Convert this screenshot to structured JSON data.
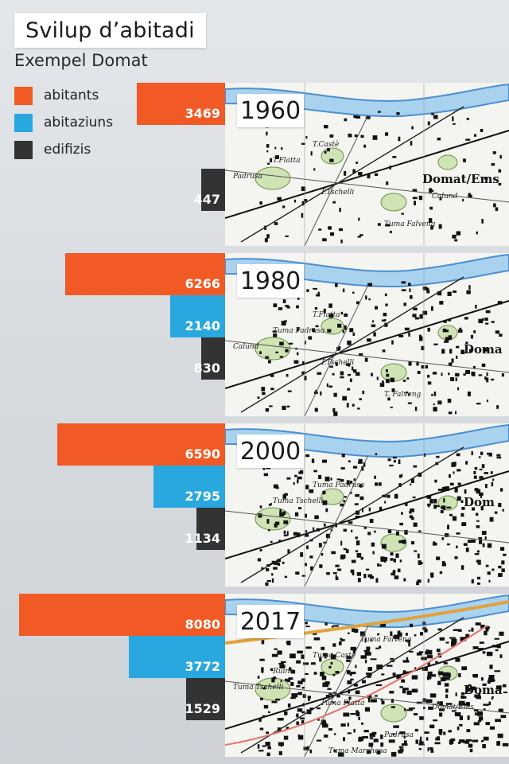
{
  "title": "Svilup d’abitadi",
  "subtitle": "Exempel Domat",
  "colors": {
    "abitants": "#f15a24",
    "abitaziuns": "#29a8e0",
    "edifizis": "#333333"
  },
  "legend": [
    {
      "key": "abitants",
      "label": "abitants"
    },
    {
      "key": "abitaziuns",
      "label": "abitaziuns"
    },
    {
      "key": "edifizis",
      "label": "edifizis"
    }
  ],
  "chart_data": {
    "type": "bar",
    "orientation": "horizontal",
    "title": "Svilup d’abitadi",
    "subtitle": "Exempel Domat",
    "categories": [
      "1960",
      "1980",
      "2000",
      "2017"
    ],
    "series": [
      {
        "name": "abitants",
        "values": [
          3469,
          6266,
          6590,
          8080
        ]
      },
      {
        "name": "abitaziuns",
        "values": [
          null,
          2140,
          2795,
          3772
        ]
      },
      {
        "name": "edifizis",
        "values": [
          447,
          830,
          1134,
          1529
        ]
      }
    ]
  },
  "maps": {
    "1960": {
      "place": "Domat/Ems",
      "labels": [
        "T.Castè",
        "T.Flatta",
        "T.Tschelli",
        "Tuma Falveng",
        "Padrusa",
        "Calund"
      ]
    },
    "1980": {
      "place": "Doma",
      "labels": [
        "T.Flatta",
        "Tuma Padrusa",
        "T.Tschelli",
        "T. Falveng",
        "Calund"
      ]
    },
    "2000": {
      "place": "Dom",
      "labels": [
        "Tuma Padrusa",
        "Tuma Tschelli"
      ]
    },
    "2017": {
      "place": "Doma",
      "labels": [
        "Tuma Castè",
        "Ruine",
        "Tuma Platta",
        "Padrusa",
        "Tuma Tschelli",
        "Domat/Ems",
        "Tuma Falveng",
        "Tuma Marchesa"
      ]
    }
  }
}
